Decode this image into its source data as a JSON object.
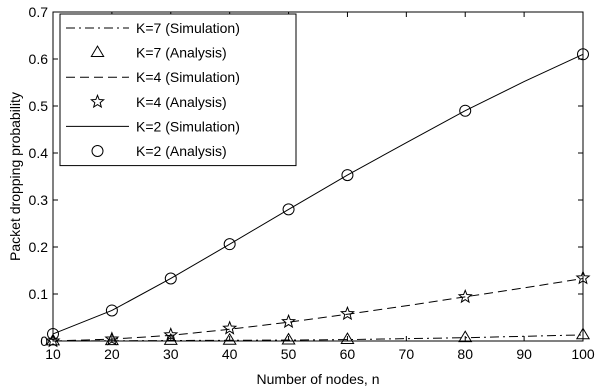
{
  "chart_data": {
    "type": "line",
    "xlabel": "Number of nodes, n",
    "ylabel": "Packet dropping probability",
    "xlim": [
      10,
      100
    ],
    "ylim": [
      0,
      0.7
    ],
    "xticks": [
      10,
      20,
      30,
      40,
      50,
      60,
      70,
      80,
      90,
      100
    ],
    "yticks": [
      0,
      0.1,
      0.2,
      0.3,
      0.4,
      0.5,
      0.6,
      0.7
    ],
    "xtick_labels": [
      "10",
      "20",
      "30",
      "40",
      "50",
      "60",
      "70",
      "80",
      "90",
      "100"
    ],
    "ytick_labels": [
      "0",
      "0.1",
      "0.2",
      "0.3",
      "0.4",
      "0.5",
      "0.6",
      "0.7"
    ],
    "grid": false,
    "legend_position": "top-left",
    "series": [
      {
        "name": "K=7 (Simulation)",
        "style": "dashdot",
        "marker": "none",
        "x": [
          10,
          20,
          30,
          40,
          50,
          60,
          70,
          80,
          90,
          100
        ],
        "values": [
          0.0,
          0.0005,
          0.001,
          0.0015,
          0.002,
          0.003,
          0.005,
          0.007,
          0.01,
          0.013
        ]
      },
      {
        "name": "K=7 (Analysis)",
        "style": "none",
        "marker": "triangle",
        "x": [
          10,
          20,
          30,
          40,
          50,
          60,
          80,
          100
        ],
        "values": [
          0.0,
          0.0005,
          0.001,
          0.0015,
          0.002,
          0.003,
          0.007,
          0.013
        ]
      },
      {
        "name": "K=4 (Simulation)",
        "style": "dashed",
        "marker": "none",
        "x": [
          10,
          20,
          30,
          40,
          50,
          60,
          70,
          80,
          90,
          100
        ],
        "values": [
          0.0,
          0.004,
          0.012,
          0.025,
          0.04,
          0.057,
          0.075,
          0.094,
          0.113,
          0.133
        ]
      },
      {
        "name": "K=4 (Analysis)",
        "style": "none",
        "marker": "star",
        "x": [
          10,
          20,
          30,
          40,
          50,
          60,
          80,
          100
        ],
        "values": [
          0.0,
          0.004,
          0.013,
          0.027,
          0.041,
          0.058,
          0.094,
          0.134
        ]
      },
      {
        "name": "K=2 (Simulation)",
        "style": "solid",
        "marker": "none",
        "x": [
          10,
          20,
          30,
          40,
          50,
          60,
          70,
          80,
          90,
          100
        ],
        "values": [
          0.015,
          0.065,
          0.133,
          0.206,
          0.28,
          0.353,
          0.422,
          0.49,
          0.552,
          0.61
        ]
      },
      {
        "name": "K=2 (Analysis)",
        "style": "none",
        "marker": "circle",
        "x": [
          10,
          20,
          30,
          40,
          50,
          60,
          80,
          100
        ],
        "values": [
          0.015,
          0.065,
          0.133,
          0.206,
          0.28,
          0.353,
          0.49,
          0.61
        ]
      }
    ]
  }
}
